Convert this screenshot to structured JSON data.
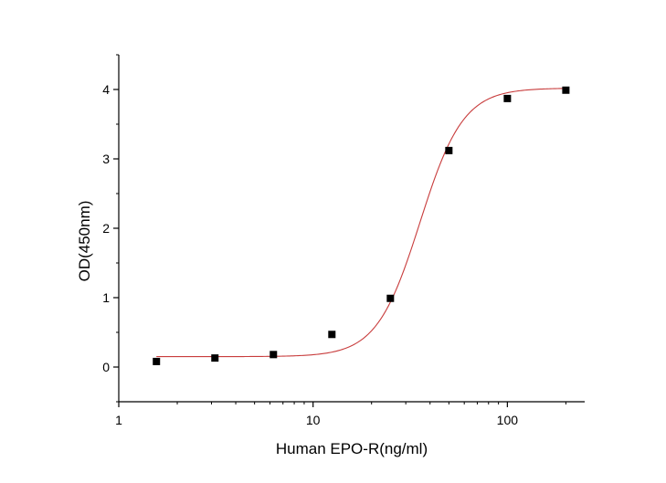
{
  "chart_data": {
    "type": "scatter",
    "xlabel": "Human EPO-R(ng/ml)",
    "ylabel": "OD(450nm)",
    "x_scale": "log",
    "xlim": [
      1,
      250
    ],
    "ylim": [
      -0.5,
      4.5
    ],
    "x_ticks": [
      1,
      10,
      100
    ],
    "x_tick_labels": [
      "1",
      "10",
      "100"
    ],
    "y_ticks": [
      0,
      1,
      2,
      3,
      4
    ],
    "y_tick_labels": [
      "0",
      "1",
      "2",
      "3",
      "4"
    ],
    "grid": false,
    "legend": "none",
    "series": [
      {
        "type": "scatter",
        "marker": "square",
        "color": "#000000",
        "x": [
          1.5625,
          3.125,
          6.25,
          12.5,
          25,
          50,
          100,
          200
        ],
        "y": [
          0.08,
          0.13,
          0.18,
          0.47,
          0.99,
          3.12,
          3.87,
          3.99
        ]
      },
      {
        "type": "line",
        "fit": "4PL",
        "color": "#c83c3c",
        "params": {
          "bottom": 0.15,
          "top": 4.02,
          "ec50": 35.5,
          "hill": 3.9
        }
      }
    ]
  }
}
